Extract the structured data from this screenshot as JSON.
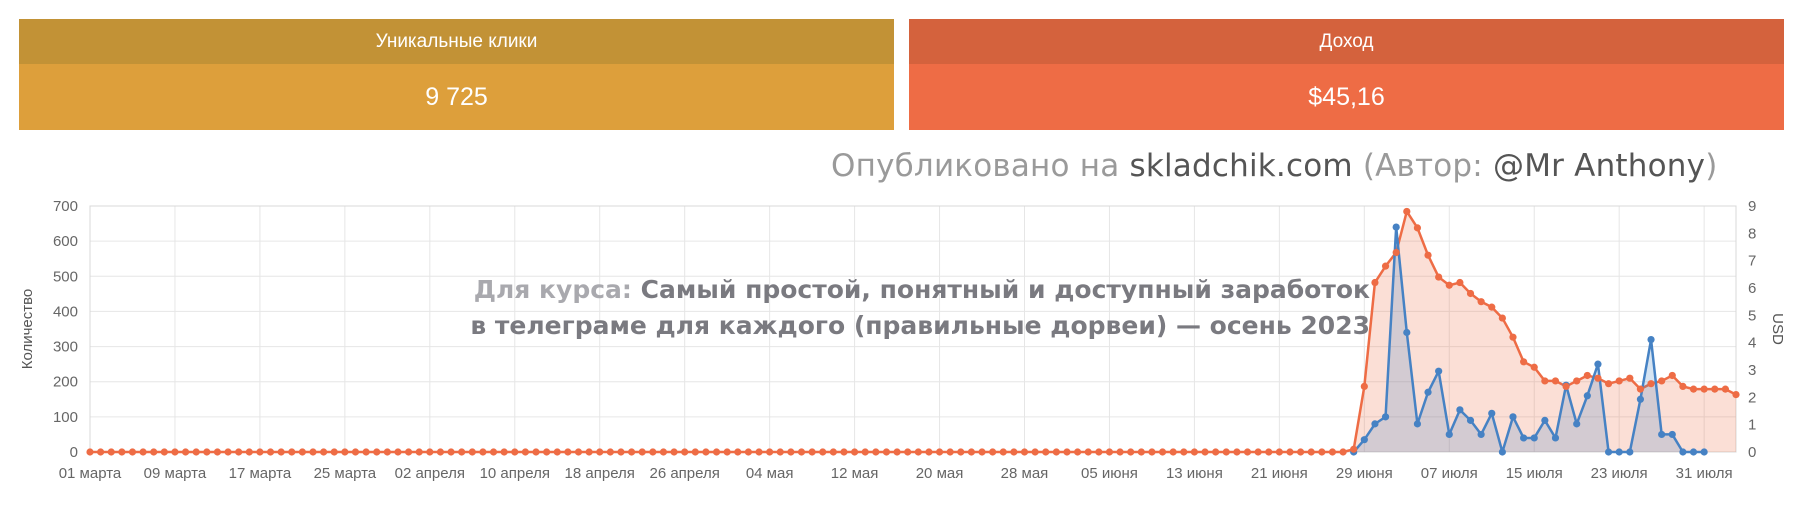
{
  "cards": {
    "clicks": {
      "title": "Уникальные клики",
      "value": "9 725"
    },
    "income": {
      "title": "Доход",
      "value": "$45,16"
    }
  },
  "credit": {
    "pre": "Опубликовано на ",
    "site": "skladchik.com",
    "mid": " (Автор: ",
    "author": "@Mr Anthony",
    "post": ")"
  },
  "course": {
    "prefix": "Для курса: ",
    "line1": "Самый простой, понятный и доступный заработок",
    "line2": "в телеграме для каждого (правильные дорвеи) — осень 2023"
  },
  "chart_data": {
    "type": "line",
    "x_start": "2023-03-01",
    "x_ticks": [
      "01 марта",
      "09 марта",
      "17 марта",
      "25 марта",
      "02 апреля",
      "10 апреля",
      "18 апреля",
      "26 апреля",
      "04 мая",
      "12 мая",
      "20 мая",
      "28 мая",
      "05 июня",
      "13 июня",
      "21 июня",
      "29 июня",
      "07 июля",
      "15 июля",
      "23 июля",
      "31 июля"
    ],
    "ylabel_left": "Количество",
    "ylabel_right": "USD",
    "ylim_left": [
      0,
      700
    ],
    "ylim_right": [
      0,
      9
    ],
    "y_ticks_left": [
      "0",
      "100",
      "200",
      "300",
      "400",
      "500",
      "600",
      "700"
    ],
    "y_ticks_right": [
      "0",
      "1",
      "2",
      "3",
      "4",
      "5",
      "6",
      "7",
      "8",
      "9"
    ],
    "grid": true,
    "series": [
      {
        "color": "#ee6c45",
        "axis": "right",
        "points": [
          [
            "2023-06-28",
            0.1
          ],
          [
            "2023-06-29",
            2.4
          ],
          [
            "2023-06-30",
            6.2
          ],
          [
            "2023-07-01",
            6.8
          ],
          [
            "2023-07-02",
            7.3
          ],
          [
            "2023-07-03",
            8.8
          ],
          [
            "2023-07-04",
            8.2
          ],
          [
            "2023-07-05",
            7.2
          ],
          [
            "2023-07-06",
            6.4
          ],
          [
            "2023-07-07",
            6.1
          ],
          [
            "2023-07-08",
            6.2
          ],
          [
            "2023-07-09",
            5.8
          ],
          [
            "2023-07-10",
            5.5
          ],
          [
            "2023-07-11",
            5.3
          ],
          [
            "2023-07-12",
            4.9
          ],
          [
            "2023-07-13",
            4.2
          ],
          [
            "2023-07-14",
            3.3
          ],
          [
            "2023-07-15",
            3.1
          ],
          [
            "2023-07-16",
            2.6
          ],
          [
            "2023-07-17",
            2.6
          ],
          [
            "2023-07-18",
            2.4
          ],
          [
            "2023-07-19",
            2.6
          ],
          [
            "2023-07-20",
            2.8
          ],
          [
            "2023-07-21",
            2.7
          ],
          [
            "2023-07-22",
            2.5
          ],
          [
            "2023-07-23",
            2.6
          ],
          [
            "2023-07-24",
            2.7
          ],
          [
            "2023-07-25",
            2.3
          ],
          [
            "2023-07-26",
            2.5
          ],
          [
            "2023-07-27",
            2.6
          ],
          [
            "2023-07-28",
            2.8
          ],
          [
            "2023-07-29",
            2.4
          ],
          [
            "2023-07-30",
            2.3
          ],
          [
            "2023-07-31",
            2.3
          ],
          [
            "2023-08-01",
            2.3
          ],
          [
            "2023-08-02",
            2.3
          ],
          [
            "2023-08-03",
            2.1
          ]
        ]
      },
      {
        "color": "#4682c4",
        "axis": "left",
        "points": [
          [
            "2023-06-28",
            0
          ],
          [
            "2023-06-29",
            35
          ],
          [
            "2023-06-30",
            80
          ],
          [
            "2023-07-01",
            100
          ],
          [
            "2023-07-02",
            640
          ],
          [
            "2023-07-03",
            340
          ],
          [
            "2023-07-04",
            80
          ],
          [
            "2023-07-05",
            170
          ],
          [
            "2023-07-06",
            230
          ],
          [
            "2023-07-07",
            50
          ],
          [
            "2023-07-08",
            120
          ],
          [
            "2023-07-09",
            90
          ],
          [
            "2023-07-10",
            50
          ],
          [
            "2023-07-11",
            110
          ],
          [
            "2023-07-12",
            0
          ],
          [
            "2023-07-13",
            100
          ],
          [
            "2023-07-14",
            40
          ],
          [
            "2023-07-15",
            40
          ],
          [
            "2023-07-16",
            90
          ],
          [
            "2023-07-17",
            40
          ],
          [
            "2023-07-18",
            190
          ],
          [
            "2023-07-19",
            80
          ],
          [
            "2023-07-20",
            160
          ],
          [
            "2023-07-21",
            250
          ],
          [
            "2023-07-22",
            0
          ],
          [
            "2023-07-23",
            0
          ],
          [
            "2023-07-24",
            0
          ],
          [
            "2023-07-25",
            150
          ],
          [
            "2023-07-26",
            320
          ],
          [
            "2023-07-27",
            50
          ],
          [
            "2023-07-28",
            50
          ],
          [
            "2023-07-29",
            0
          ],
          [
            "2023-07-30",
            0
          ],
          [
            "2023-07-31",
            0
          ]
        ]
      }
    ]
  }
}
